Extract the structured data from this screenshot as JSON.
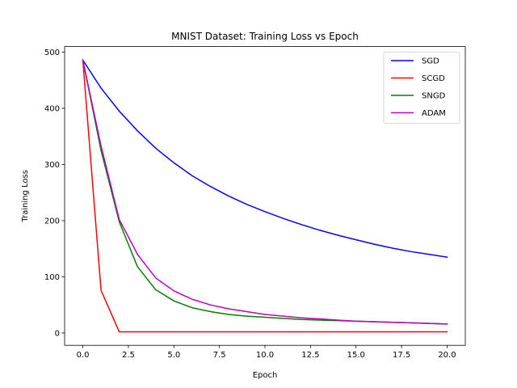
{
  "chart_data": {
    "type": "line",
    "title": "MNIST Dataset:  Training Loss vs Epoch",
    "xlabel": "Epoch",
    "ylabel": "Training Loss",
    "xlim": [
      -1,
      21
    ],
    "ylim": [
      -22,
      510
    ],
    "xticks": [
      0,
      2.5,
      5,
      7.5,
      10,
      12.5,
      15,
      17.5,
      20
    ],
    "xtick_labels": [
      "0.0",
      "2.5",
      "5.0",
      "7.5",
      "10.0",
      "12.5",
      "15.0",
      "17.5",
      "20.0"
    ],
    "yticks": [
      0,
      100,
      200,
      300,
      400,
      500
    ],
    "ytick_labels": [
      "0",
      "100",
      "200",
      "300",
      "400",
      "500"
    ],
    "legend": "top-right",
    "grid": false,
    "x": [
      0,
      1,
      2,
      3,
      4,
      5,
      6,
      7,
      8,
      9,
      10,
      11,
      12,
      13,
      14,
      15,
      16,
      17,
      18,
      19,
      20
    ],
    "series": [
      {
        "name": "SGD",
        "color": "#0000ff",
        "values": [
          486,
          436,
          395,
          360,
          329,
          303,
          280,
          261,
          244,
          229,
          216,
          204,
          193,
          183,
          174,
          166,
          158,
          151,
          145,
          140,
          135
        ]
      },
      {
        "name": "SCGD",
        "color": "#ff0000",
        "values": [
          486,
          76,
          2,
          2,
          2,
          2,
          2,
          2,
          2,
          2,
          2,
          2,
          2,
          2,
          2,
          2,
          2,
          2,
          2,
          2,
          2
        ]
      },
      {
        "name": "SNGD",
        "color": "#008000",
        "values": [
          486,
          325,
          198,
          118,
          77,
          57,
          45,
          38,
          33,
          30,
          28,
          26,
          24,
          23,
          22,
          21,
          20,
          19,
          18,
          17,
          16
        ]
      },
      {
        "name": "ADAM",
        "color": "#bf00bf",
        "values": [
          486,
          333,
          202,
          140,
          98,
          75,
          60,
          50,
          43,
          38,
          33,
          30,
          27,
          25,
          23,
          21,
          20,
          19,
          18,
          17,
          16
        ]
      }
    ]
  }
}
